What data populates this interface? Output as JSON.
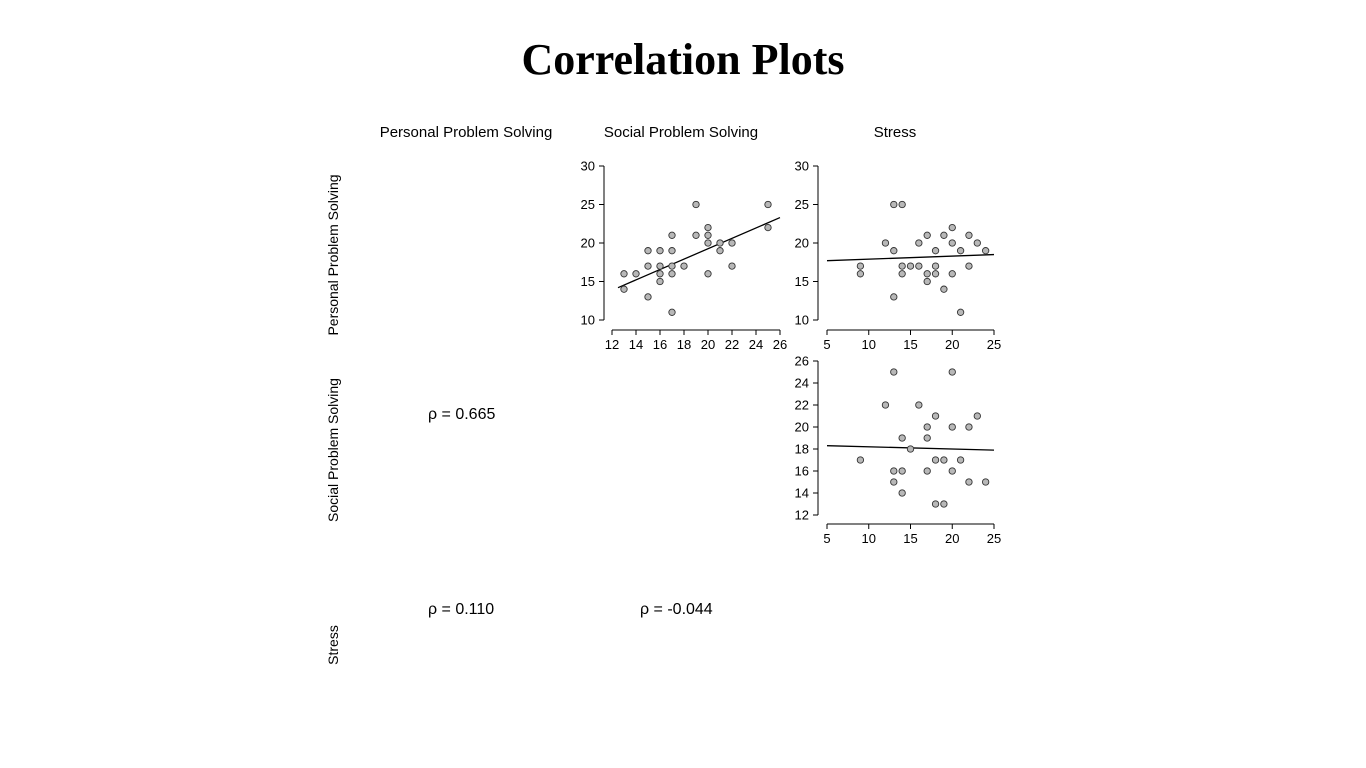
{
  "title": "Correlation Plots",
  "variables": [
    "Personal Problem Solving",
    "Social Problem Solving",
    "Stress"
  ],
  "chart_data": [
    {
      "type": "scatter",
      "id": "pps_vs_sps",
      "xlabel": "Social Problem Solving",
      "ylabel": "Personal Problem Solving",
      "xlim": [
        12,
        26
      ],
      "ylim": [
        10,
        30
      ],
      "xticks": [
        12,
        14,
        16,
        18,
        20,
        22,
        24,
        26
      ],
      "yticks": [
        10,
        15,
        20,
        25,
        30
      ],
      "points": [
        [
          13,
          16
        ],
        [
          13,
          14
        ],
        [
          14,
          16
        ],
        [
          15,
          19
        ],
        [
          15,
          17
        ],
        [
          15,
          13
        ],
        [
          16,
          19
        ],
        [
          16,
          17
        ],
        [
          16,
          16
        ],
        [
          16,
          15
        ],
        [
          17,
          21
        ],
        [
          17,
          19
        ],
        [
          17,
          17
        ],
        [
          17,
          16
        ],
        [
          17,
          11
        ],
        [
          18,
          17
        ],
        [
          19,
          25
        ],
        [
          19,
          21
        ],
        [
          20,
          22
        ],
        [
          20,
          21
        ],
        [
          20,
          20
        ],
        [
          20,
          16
        ],
        [
          21,
          20
        ],
        [
          21,
          19
        ],
        [
          22,
          20
        ],
        [
          22,
          17
        ],
        [
          25,
          25
        ],
        [
          25,
          22
        ]
      ],
      "fit": [
        [
          12.5,
          14.2
        ],
        [
          26,
          23.3
        ]
      ]
    },
    {
      "type": "scatter",
      "id": "pps_vs_stress",
      "xlabel": "Stress",
      "ylabel": "Personal Problem Solving",
      "xlim": [
        5,
        25
      ],
      "ylim": [
        10,
        30
      ],
      "xticks": [
        5,
        10,
        15,
        20,
        25
      ],
      "yticks": [
        10,
        15,
        20,
        25,
        30
      ],
      "points": [
        [
          9,
          17
        ],
        [
          9,
          16
        ],
        [
          12,
          20
        ],
        [
          13,
          25
        ],
        [
          13,
          19
        ],
        [
          13,
          13
        ],
        [
          14,
          25
        ],
        [
          14,
          17
        ],
        [
          14,
          16
        ],
        [
          15,
          17
        ],
        [
          16,
          20
        ],
        [
          16,
          17
        ],
        [
          17,
          21
        ],
        [
          17,
          16
        ],
        [
          17,
          15
        ],
        [
          18,
          19
        ],
        [
          18,
          17
        ],
        [
          18,
          16
        ],
        [
          19,
          21
        ],
        [
          19,
          14
        ],
        [
          20,
          22
        ],
        [
          20,
          20
        ],
        [
          20,
          16
        ],
        [
          21,
          19
        ],
        [
          21,
          11
        ],
        [
          22,
          21
        ],
        [
          22,
          17
        ],
        [
          23,
          20
        ],
        [
          24,
          19
        ]
      ],
      "fit": [
        [
          5,
          17.7
        ],
        [
          25,
          18.5
        ]
      ]
    },
    {
      "type": "scatter",
      "id": "sps_vs_stress",
      "xlabel": "Stress",
      "ylabel": "Social Problem Solving",
      "xlim": [
        5,
        25
      ],
      "ylim": [
        12,
        26
      ],
      "xticks": [
        5,
        10,
        15,
        20,
        25
      ],
      "yticks": [
        12,
        14,
        16,
        18,
        20,
        22,
        24,
        26
      ],
      "points": [
        [
          9,
          17
        ],
        [
          12,
          22
        ],
        [
          13,
          25
        ],
        [
          13,
          16
        ],
        [
          13,
          15
        ],
        [
          14,
          19
        ],
        [
          14,
          16
        ],
        [
          14,
          14
        ],
        [
          15,
          18
        ],
        [
          16,
          22
        ],
        [
          17,
          20
        ],
        [
          17,
          19
        ],
        [
          17,
          16
        ],
        [
          18,
          21
        ],
        [
          18,
          17
        ],
        [
          18,
          13
        ],
        [
          19,
          17
        ],
        [
          19,
          13
        ],
        [
          20,
          25
        ],
        [
          20,
          20
        ],
        [
          20,
          16
        ],
        [
          21,
          17
        ],
        [
          22,
          20
        ],
        [
          22,
          15
        ],
        [
          23,
          21
        ],
        [
          24,
          15
        ]
      ],
      "fit": [
        [
          5,
          18.3
        ],
        [
          25,
          17.9
        ]
      ]
    }
  ],
  "correlations": {
    "pps_sps": "ρ = 0.665",
    "pps_stress": "ρ = 0.110",
    "sps_stress": "ρ = -0.044"
  }
}
